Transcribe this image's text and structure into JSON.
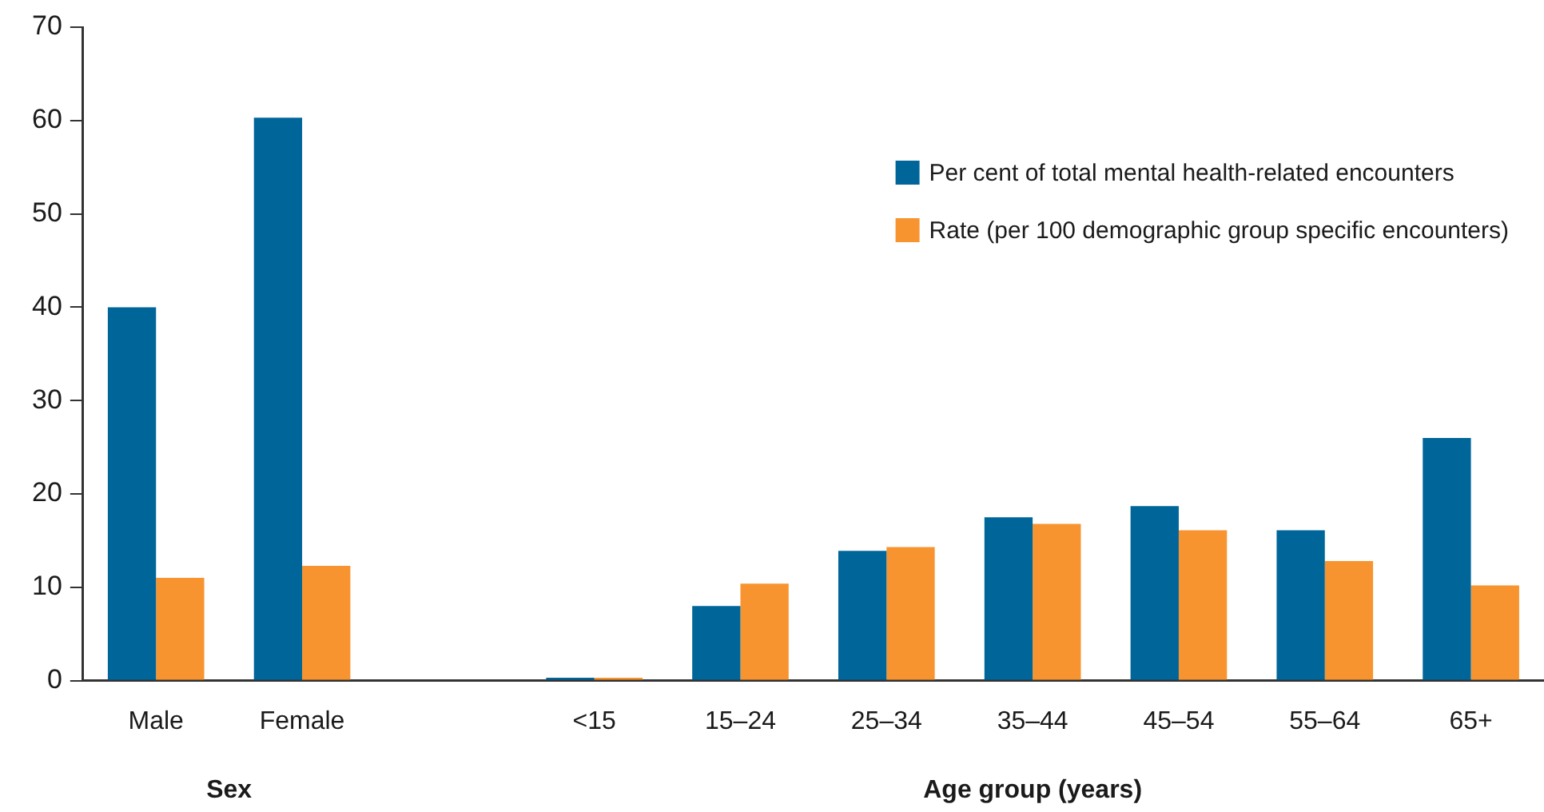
{
  "chart_data": {
    "type": "bar",
    "categories": [
      "Male",
      "Female",
      null,
      "<15",
      "15–24",
      "25–34",
      "35–44",
      "45–54",
      "55–64",
      "65+"
    ],
    "series": [
      {
        "name": "Per cent of total mental health-related encounters",
        "color": "#00669a",
        "values": [
          40.0,
          60.3,
          null,
          0.3,
          8.0,
          13.9,
          17.5,
          18.7,
          16.1,
          26.0
        ]
      },
      {
        "name": "Rate (per 100 demographic group specific encounters)",
        "color": "#f7942f",
        "values": [
          11.0,
          12.3,
          null,
          0.3,
          10.4,
          14.3,
          16.8,
          16.1,
          12.8,
          10.2
        ]
      }
    ],
    "ylim": [
      0,
      70
    ],
    "yticks": [
      0,
      10,
      20,
      30,
      40,
      50,
      60,
      70
    ],
    "legend": "top right",
    "annotations": [
      "Sex",
      "Age group (years)"
    ]
  }
}
